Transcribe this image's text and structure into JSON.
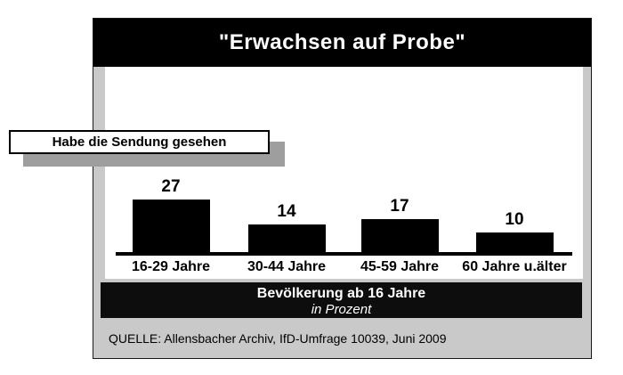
{
  "title": "\"Erwachsen auf Probe\"",
  "callout": {
    "label": "Habe die Sendung gesehen"
  },
  "footer": {
    "line1": "Bevölkerung ab 16 Jahre",
    "line2": "in Prozent"
  },
  "source": "QUELLE: Allensbacher Archiv, IfD-Umfrage 10039, Juni 2009",
  "colors": {
    "header_bg": "#000000",
    "bar": "#000000",
    "panel_bg": "#c9c9c9",
    "shadow": "#9e9e9e",
    "text_on_dark": "#ffffff"
  },
  "chart_data": {
    "type": "bar",
    "title": "\"Erwachsen auf Probe\"",
    "series_label": "Habe die Sendung gesehen",
    "categories": [
      "16-29 Jahre",
      "30-44 Jahre",
      "45-59 Jahre",
      "60 Jahre u.älter"
    ],
    "values": [
      27,
      14,
      17,
      10
    ],
    "data_labels": true,
    "unit_note": "in Prozent",
    "population_note": "Bevölkerung ab 16 Jahre",
    "xlabel": "",
    "ylabel": "",
    "ylim": [
      0,
      30
    ],
    "grid": false,
    "legend_position": "none",
    "source": "QUELLE: Allensbacher Archiv, IfD-Umfrage 10039, Juni 2009"
  }
}
